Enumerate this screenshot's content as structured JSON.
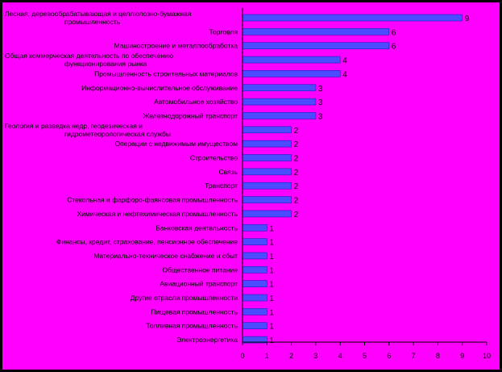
{
  "chart_data": {
    "type": "bar",
    "orientation": "horizontal",
    "title": "",
    "xlabel": "",
    "ylabel": "",
    "xlim": [
      0,
      10
    ],
    "x_ticks": [
      "0",
      "1",
      "2",
      "3",
      "4",
      "5",
      "6",
      "7",
      "8",
      "9",
      "10"
    ],
    "grid": false,
    "legend": "none",
    "colors": {
      "background": "#ff00ff",
      "bar": "#4b4bff",
      "bar_edge": "#2020c0",
      "frame": "#000000"
    },
    "categories": [
      [
        "Лесная, деревообрабатывающая и целлюлозно-бумажная",
        "промышленность"
      ],
      [
        "Торговля"
      ],
      [
        "Машиностроение и металлообработка"
      ],
      [
        "Общая коммерческая деятельность по обеспечению",
        "функционирования рынка"
      ],
      [
        "Промышленность строительных материалов"
      ],
      [
        "Информационно-вычислительное обслуживание"
      ],
      [
        "Автомобильное хозяйство"
      ],
      [
        "Железнодорожный транспорт"
      ],
      [
        "Геология и разведка недр, геодезическая и",
        "гидрометеорологическая службы"
      ],
      [
        "Операции с недвижимым имуществом"
      ],
      [
        "Строительство"
      ],
      [
        "Связь"
      ],
      [
        "Транспорт"
      ],
      [
        "Стекольная и фарфоро-фаянсовая промышленность"
      ],
      [
        "Химическая и нефтехимическая промышленность"
      ],
      [
        "Банковская деятельность"
      ],
      [
        "Финансы, кредит, страхование, пенсионное обеспечение"
      ],
      [
        "Материально-техническое снабжение и сбыт"
      ],
      [
        "Общественное питание"
      ],
      [
        "Авиационный транспорт"
      ],
      [
        "Другие отрасли промышленности"
      ],
      [
        "Пищевая промышленность"
      ],
      [
        "Топливная промышленность"
      ],
      [
        "Электроэнергетика"
      ]
    ],
    "values": [
      9,
      6,
      6,
      4,
      4,
      3,
      3,
      3,
      2,
      2,
      2,
      2,
      2,
      2,
      2,
      1,
      1,
      1,
      1,
      1,
      1,
      1,
      1,
      1
    ]
  }
}
